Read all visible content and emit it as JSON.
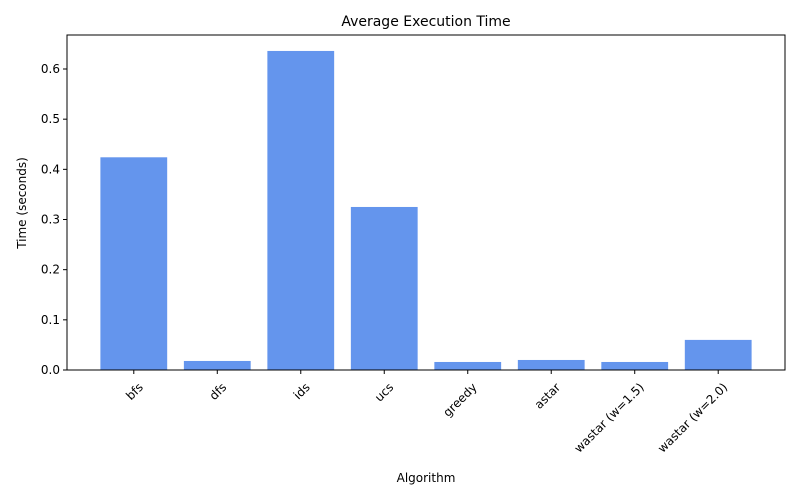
{
  "chart_data": {
    "type": "bar",
    "title": "Average Execution Time",
    "xlabel": "Algorithm",
    "ylabel": "Time (seconds)",
    "categories": [
      "bfs",
      "dfs",
      "ids",
      "ucs",
      "greedy",
      "astar",
      "wastar (w=1.5)",
      "wastar (w=2.0)"
    ],
    "values": [
      0.424,
      0.018,
      0.636,
      0.325,
      0.016,
      0.02,
      0.016,
      0.06
    ],
    "ylim": [
      0,
      0.6678
    ],
    "yticks": [
      0.0,
      0.1,
      0.2,
      0.3,
      0.4,
      0.5,
      0.6
    ],
    "ytick_labels": [
      "0.0",
      "0.1",
      "0.2",
      "0.3",
      "0.4",
      "0.5",
      "0.6"
    ],
    "bar_color": "#6495ed",
    "grid": false,
    "legend": "none"
  }
}
